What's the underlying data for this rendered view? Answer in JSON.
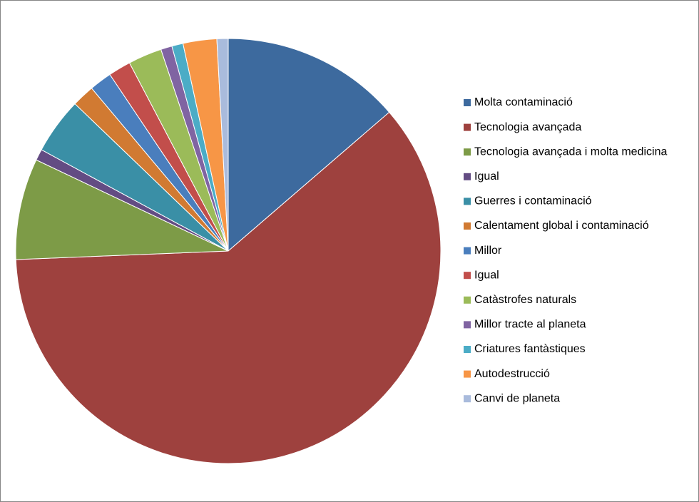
{
  "chart_data": {
    "type": "pie",
    "categories": [
      "Molta contaminació",
      "Tecnologia avançada",
      "Tecnologia avançada i molta medicina",
      "Igual",
      "Guerres i contaminació",
      "Calentament global i contaminació",
      "Millor",
      "Igual",
      "Catàstrofes naturals",
      "Millor tracte al planeta",
      "Criatures fantàstiques",
      "Autodestrucció",
      "Canvi de planeta"
    ],
    "values": [
      16,
      71,
      9,
      1,
      5,
      2,
      2,
      2,
      3,
      1,
      1,
      3,
      1
    ],
    "colors": [
      "#3d6a9e",
      "#9e413e",
      "#7d9b47",
      "#634c83",
      "#3a8fa6",
      "#d17a32",
      "#4a7ebd",
      "#c24e4b",
      "#9bbb59",
      "#8064a2",
      "#4bacc6",
      "#f79646",
      "#a9bbdc"
    ],
    "legend": "right"
  }
}
